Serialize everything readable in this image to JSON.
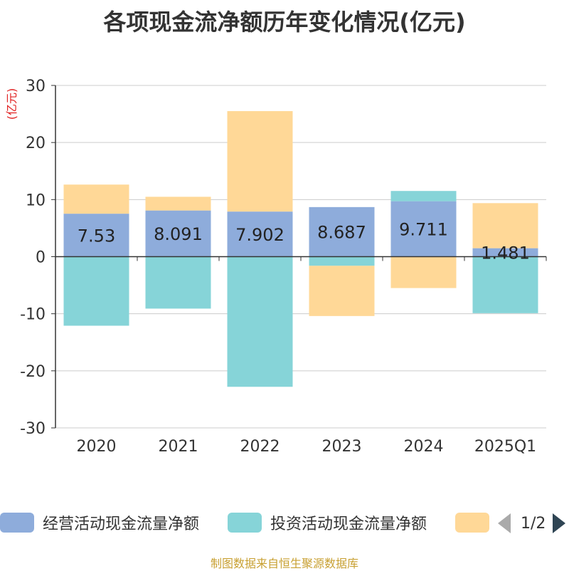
{
  "title": "各项现金流净额历年变化情况(亿元)",
  "source_note": "制图数据来自恒生聚源数据库",
  "legend_pager": "1/2",
  "legend_items": [
    {
      "label": "经营活动现金流量净额",
      "color": "#8eacdb"
    },
    {
      "label": "投资活动现金流量净额",
      "color": "#86d4d8"
    },
    {
      "label": "",
      "color": "#ffd897"
    }
  ],
  "chart_data": {
    "type": "bar",
    "stacked": true,
    "title": "各项现金流净额历年变化情况(亿元)",
    "ylabel": "(亿元)",
    "ylim": [
      -30,
      30
    ],
    "yticks": [
      30,
      20,
      10,
      0,
      -10,
      -20,
      -30
    ],
    "categories": [
      "2020",
      "2021",
      "2022",
      "2023",
      "2024",
      "2025Q1"
    ],
    "grid": true,
    "legend_position": "bottom",
    "series": [
      {
        "name": "经营活动现金流量净额",
        "color": "#8eacdb",
        "values": [
          7.53,
          8.091,
          7.902,
          8.687,
          9.711,
          1.481
        ],
        "labels": [
          "7.53",
          "8.091",
          "7.902",
          "8.687",
          "9.711",
          "1.481"
        ]
      },
      {
        "name": "投资活动现金流量净额",
        "color": "#86d4d8",
        "values": [
          -12.1,
          -9.1,
          -22.8,
          -1.6,
          1.8,
          -9.9
        ]
      },
      {
        "name": "",
        "color": "#ffd897",
        "values": [
          5.1,
          2.4,
          17.6,
          -8.8,
          -5.5,
          7.9
        ]
      }
    ]
  }
}
